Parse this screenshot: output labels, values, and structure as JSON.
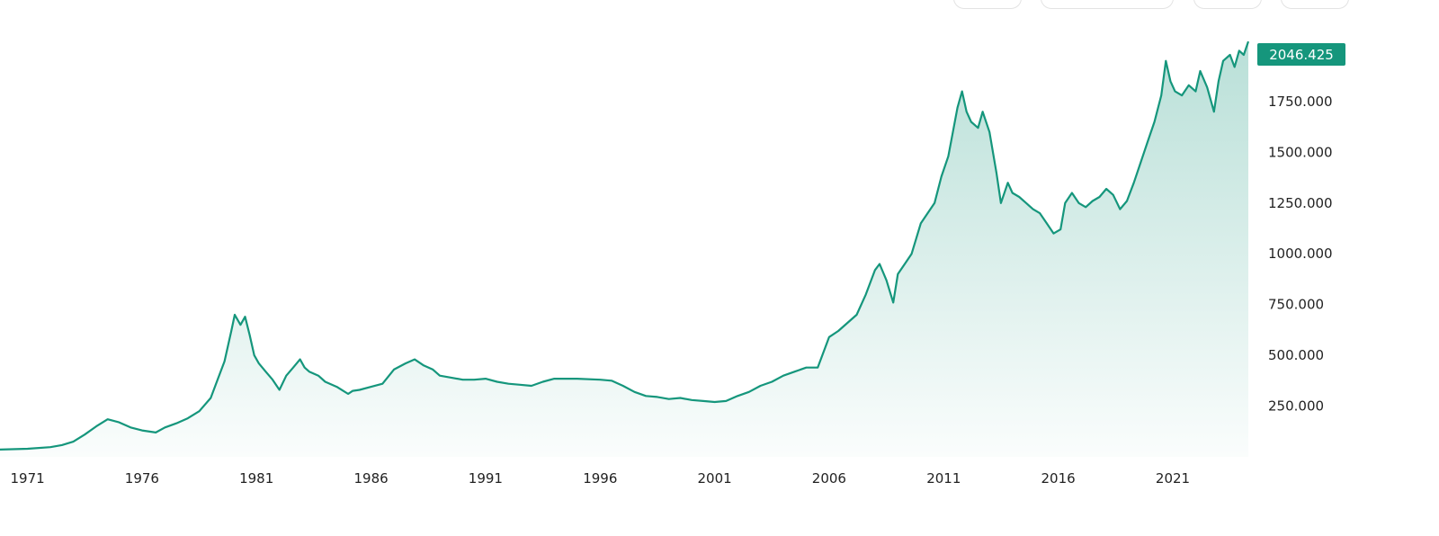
{
  "toolbar": {
    "buttons": [
      "range-button-1",
      "range-button-2",
      "range-button-3",
      "range-button-4"
    ]
  },
  "colors": {
    "line": "#15967c",
    "fill_top": "#15967c",
    "badge_bg": "#15967c",
    "badge_text": "#ffffff",
    "tick_text": "#222222",
    "background": "#ffffff"
  },
  "chart_data": {
    "type": "area",
    "title": "",
    "xlabel": "",
    "ylabel": "",
    "grid": false,
    "xlim": [
      1969.8,
      2024.3
    ],
    "ylim": [
      0,
      2250
    ],
    "x_ticks": [
      1971,
      1976,
      1981,
      1986,
      1991,
      1996,
      2001,
      2006,
      2011,
      2016,
      2021
    ],
    "x_tick_labels": [
      "1971",
      "1976",
      "1981",
      "1986",
      "1991",
      "1996",
      "2001",
      "2006",
      "2011",
      "2016",
      "2021"
    ],
    "y_ticks": [
      250,
      500,
      750,
      1000,
      1250,
      1500,
      1750
    ],
    "y_tick_labels": [
      "250.000",
      "500.000",
      "750.000",
      "1000.000",
      "1250.000",
      "1500.000",
      "1750.000"
    ],
    "last_value": 2046.425,
    "last_value_label": "2046.425",
    "series": [
      {
        "x": [
          1969.8,
          1971,
          1972,
          1972.5,
          1973,
          1973.5,
          1974,
          1974.5,
          1975,
          1975.5,
          1976,
          1976.6,
          1977,
          1977.5,
          1978,
          1978.5,
          1979,
          1979.3,
          1979.6,
          1979.9,
          1980.05,
          1980.3,
          1980.5,
          1980.7,
          1980.9,
          1981.1,
          1981.4,
          1981.7,
          1982,
          1982.3,
          1982.6,
          1982.9,
          1983.1,
          1983.3,
          1983.7,
          1984,
          1984.5,
          1985,
          1985.2,
          1985.5,
          1986,
          1986.5,
          1987,
          1987.5,
          1987.9,
          1988.3,
          1988.7,
          1989,
          1989.5,
          1990,
          1990.5,
          1991,
          1991.5,
          1992,
          1992.5,
          1993,
          1993.5,
          1994,
          1995,
          1996,
          1996.5,
          1997,
          1997.5,
          1998,
          1998.5,
          1999,
          1999.5,
          2000,
          2000.5,
          2001,
          2001.5,
          2002,
          2002.5,
          2003,
          2003.5,
          2004,
          2004.5,
          2005,
          2005.5,
          2006,
          2006.4,
          2006.8,
          2007.2,
          2007.6,
          2008,
          2008.2,
          2008.5,
          2008.8,
          2009,
          2009.3,
          2009.6,
          2010,
          2010.3,
          2010.6,
          2010.9,
          2011.2,
          2011.4,
          2011.6,
          2011.8,
          2012.0,
          2012.2,
          2012.5,
          2012.7,
          2013.0,
          2013.3,
          2013.5,
          2013.8,
          2014,
          2014.3,
          2014.6,
          2014.9,
          2015.2,
          2015.5,
          2015.8,
          2016.1,
          2016.3,
          2016.6,
          2016.9,
          2017.2,
          2017.5,
          2017.8,
          2018.1,
          2018.4,
          2018.7,
          2019,
          2019.3,
          2019.6,
          2019.9,
          2020.2,
          2020.5,
          2020.7,
          2020.9,
          2021.1,
          2021.4,
          2021.7,
          2022.0,
          2022.2,
          2022.5,
          2022.8,
          2023.0,
          2023.2,
          2023.5,
          2023.7,
          2023.9,
          2024.1,
          2024.3
        ],
        "values": [
          36,
          40,
          48,
          58,
          75,
          110,
          150,
          185,
          170,
          145,
          130,
          120,
          145,
          165,
          190,
          225,
          290,
          380,
          470,
          620,
          700,
          650,
          690,
          600,
          500,
          460,
          420,
          380,
          330,
          400,
          440,
          480,
          440,
          420,
          400,
          370,
          345,
          310,
          325,
          330,
          345,
          360,
          430,
          460,
          480,
          450,
          430,
          400,
          390,
          380,
          380,
          385,
          370,
          360,
          355,
          350,
          370,
          385,
          385,
          380,
          375,
          350,
          320,
          300,
          295,
          285,
          290,
          280,
          275,
          270,
          275,
          300,
          320,
          350,
          370,
          400,
          420,
          440,
          440,
          590,
          620,
          660,
          700,
          800,
          920,
          950,
          870,
          760,
          900,
          950,
          1000,
          1150,
          1200,
          1250,
          1380,
          1480,
          1600,
          1720,
          1800,
          1700,
          1650,
          1620,
          1700,
          1600,
          1400,
          1250,
          1350,
          1300,
          1280,
          1250,
          1220,
          1200,
          1150,
          1100,
          1120,
          1250,
          1300,
          1250,
          1230,
          1260,
          1280,
          1320,
          1290,
          1220,
          1260,
          1350,
          1450,
          1550,
          1650,
          1780,
          1950,
          1850,
          1800,
          1780,
          1830,
          1800,
          1900,
          1820,
          1700,
          1850,
          1950,
          1980,
          1920,
          2000,
          1980,
          2046
        ]
      }
    ]
  }
}
